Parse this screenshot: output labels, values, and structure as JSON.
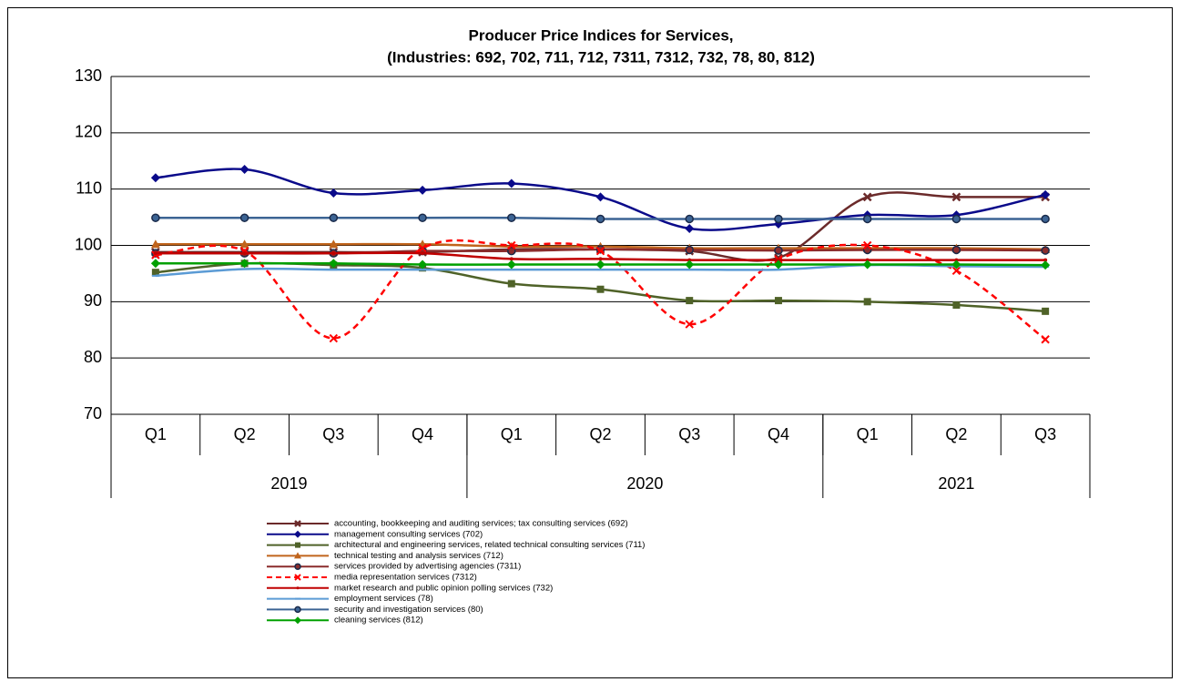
{
  "chart_data": {
    "type": "line",
    "title": "Producer Price Indices for Services,",
    "subtitle": "(Industries: 692, 702, 711, 712, 7311, 7312, 732, 78, 80, 812)",
    "categories": [
      "Q1",
      "Q2",
      "Q3",
      "Q4",
      "Q1",
      "Q2",
      "Q3",
      "Q4",
      "Q1",
      "Q2",
      "Q3"
    ],
    "groups": [
      {
        "label": "2019",
        "span": 4
      },
      {
        "label": "2020",
        "span": 4
      },
      {
        "label": "2021",
        "span": 3
      }
    ],
    "ylim": [
      70,
      130
    ],
    "yticks": [
      70,
      80,
      90,
      100,
      110,
      120,
      130
    ],
    "grid": true,
    "smooth": true,
    "series": [
      {
        "name": "accounting, bookkeeping and auditing services; tax consulting services (692)",
        "color": "#6b2a2a",
        "marker": "cross",
        "values": [
          98.8,
          98.8,
          98.8,
          98.8,
          99.3,
          99.3,
          99.0,
          97.8,
          108.6,
          108.6,
          108.6
        ]
      },
      {
        "name": "management consulting services (702)",
        "color": "#0a0a8a",
        "marker": "diamond",
        "values": [
          112.0,
          113.5,
          109.3,
          109.8,
          111.0,
          108.6,
          103.0,
          103.8,
          105.4,
          105.4,
          109.0
        ]
      },
      {
        "name": "architectural and engineering services, related technical consulting services (711)",
        "color": "#4f6228",
        "marker": "square",
        "values": [
          95.2,
          96.8,
          96.5,
          96.0,
          93.2,
          92.2,
          90.2,
          90.2,
          90.0,
          89.4,
          88.3
        ]
      },
      {
        "name": "technical testing and analysis services (712)",
        "color": "#c0641c",
        "marker": "triangle",
        "values": [
          100.2,
          100.2,
          100.2,
          100.2,
          99.8,
          99.8,
          99.5,
          99.5,
          99.5,
          99.5,
          99.3
        ]
      },
      {
        "name": "services provided by advertising agencies (7311)",
        "color": "#8b2c2c",
        "marker": "circle",
        "values": [
          98.6,
          98.6,
          98.6,
          99.0,
          99.0,
          99.3,
          99.2,
          99.1,
          99.2,
          99.2,
          99.1
        ]
      },
      {
        "name": "media representation services (7312)",
        "color": "#ff0000",
        "marker": "x",
        "dash": true,
        "values": [
          98.3,
          99.0,
          83.5,
          99.5,
          100.0,
          99.0,
          86.0,
          97.5,
          100.0,
          95.5,
          83.3
        ]
      },
      {
        "name": "market research and public opinion polling services (732)",
        "color": "#c00000",
        "marker": "dot",
        "values": [
          98.6,
          98.6,
          98.6,
          98.6,
          97.6,
          97.6,
          97.4,
          97.4,
          97.4,
          97.4,
          97.4
        ]
      },
      {
        "name": "employment services (78)",
        "color": "#5b9bd5",
        "marker": "dash",
        "values": [
          94.6,
          95.8,
          95.7,
          95.7,
          95.7,
          95.7,
          95.7,
          95.7,
          96.5,
          96.3,
          96.2
        ]
      },
      {
        "name": "security and investigation services (80)",
        "color": "#3c6494",
        "marker": "circle",
        "values": [
          104.9,
          104.9,
          104.9,
          104.9,
          104.9,
          104.7,
          104.7,
          104.7,
          104.7,
          104.7,
          104.7
        ]
      },
      {
        "name": "cleaning services (812)",
        "color": "#00a000",
        "marker": "diamond",
        "values": [
          96.8,
          96.8,
          96.8,
          96.6,
          96.6,
          96.6,
          96.6,
          96.6,
          96.6,
          96.6,
          96.5
        ]
      }
    ]
  }
}
